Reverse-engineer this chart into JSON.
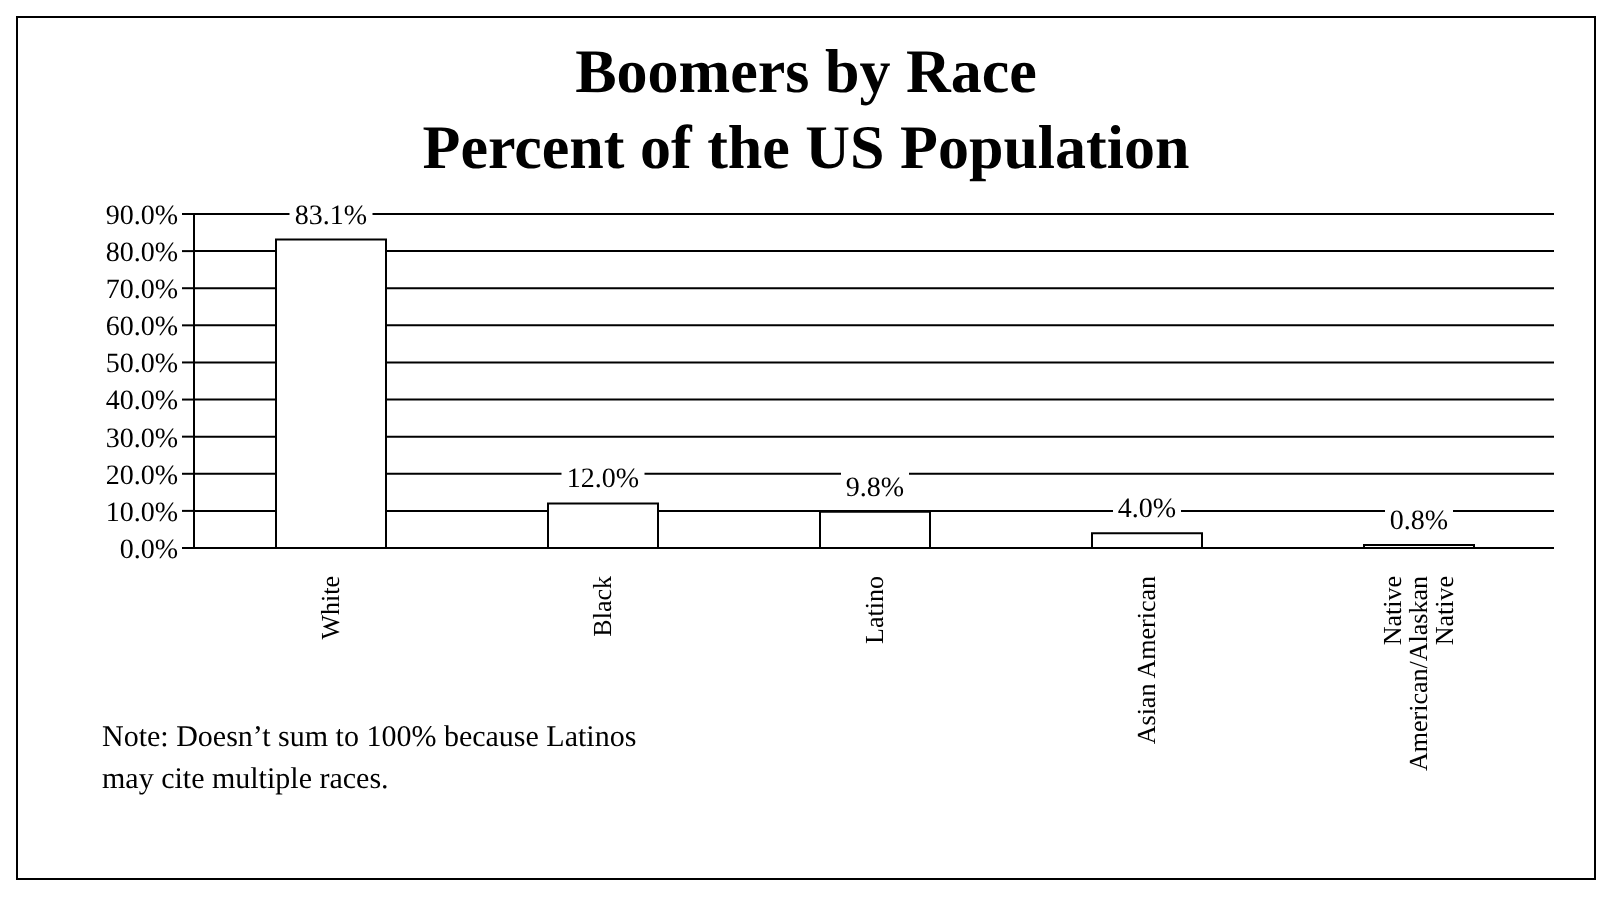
{
  "chart_data": {
    "type": "bar",
    "title": "Boomers by Race\nPercent of the US Population",
    "categories": [
      "White",
      "Black",
      "Latino",
      "Asian American",
      "Native American/Alaskan Native"
    ],
    "values": [
      83.1,
      12.0,
      9.8,
      4.0,
      0.8
    ],
    "value_labels": [
      "83.1%",
      "12.0%",
      "9.8%",
      "4.0%",
      "0.8%"
    ],
    "color": "#ffffff",
    "ylim": [
      0,
      90
    ],
    "yticks": [
      {
        "value": 0,
        "label": "0.0%"
      },
      {
        "value": 10,
        "label": "10.0%"
      },
      {
        "value": 20,
        "label": "20.0%"
      },
      {
        "value": 30,
        "label": "30.0%"
      },
      {
        "value": 40,
        "label": "40.0%"
      },
      {
        "value": 50,
        "label": "50.0%"
      },
      {
        "value": 60,
        "label": "60.0%"
      },
      {
        "value": 70,
        "label": "70.0%"
      },
      {
        "value": 80,
        "label": "80.0%"
      },
      {
        "value": 90,
        "label": "90.0%"
      }
    ],
    "grid": "y",
    "legend": false,
    "annotations": [
      "Note: Doesn’t sum to 100% because Latinos\nmay cite multiple races."
    ]
  }
}
